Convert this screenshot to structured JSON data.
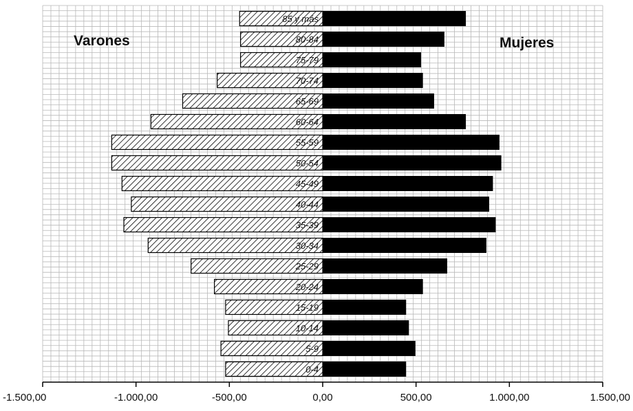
{
  "chart_data": {
    "type": "bar",
    "orientation": "horizontal",
    "layout": "population-pyramid",
    "title": "",
    "xlabel": "",
    "ylabel": "",
    "xlim": [
      -1500,
      1500
    ],
    "x_ticks": [
      -1500,
      -1000,
      -500,
      0,
      500,
      1000,
      1500
    ],
    "x_tick_labels": [
      "-1.500,00",
      "-1.000,00",
      "-500,00",
      "0,00",
      "500,00",
      "1.000,00",
      "1.500,00"
    ],
    "categories": [
      "85 y más",
      "80-84",
      "75-79",
      "70-74",
      "65-69",
      "60-64",
      "55-59",
      "50-54",
      "45-49",
      "40-44",
      "35-39",
      "30-34",
      "25-29",
      "20-24",
      "15-19",
      "10-14",
      "5-9",
      "0-4"
    ],
    "series": [
      {
        "name": "Varones",
        "pattern": "diagonal-hatch",
        "values": [
          -445,
          -440,
          -440,
          -565,
          -750,
          -920,
          -1130,
          -1130,
          -1075,
          -1025,
          -1065,
          -935,
          -705,
          -580,
          -520,
          -505,
          -545,
          -520
        ]
      },
      {
        "name": "Mujeres",
        "color": "#000000",
        "values": [
          765,
          650,
          525,
          535,
          595,
          765,
          945,
          955,
          910,
          890,
          925,
          875,
          665,
          535,
          445,
          460,
          495,
          445
        ]
      }
    ],
    "grid": true,
    "legend": "inline side labels (Varones top-left, Mujeres top-right)"
  }
}
